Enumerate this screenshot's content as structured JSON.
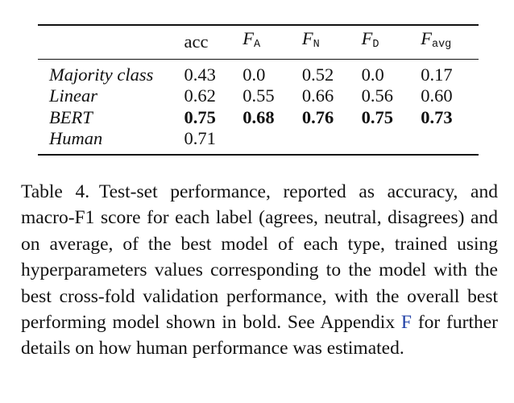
{
  "table": {
    "columns": [
      {
        "main": "acc",
        "sub": ""
      },
      {
        "main": "F",
        "sub": "A"
      },
      {
        "main": "F",
        "sub": "N"
      },
      {
        "main": "F",
        "sub": "D"
      },
      {
        "main": "F",
        "sub": "avg"
      }
    ],
    "rows": [
      {
        "label": "Majority class",
        "values": [
          "0.43",
          "0.0",
          "0.52",
          "0.0",
          "0.17"
        ]
      },
      {
        "label": "Linear",
        "values": [
          "0.62",
          "0.55",
          "0.66",
          "0.56",
          "0.60"
        ]
      },
      {
        "label": "BERT",
        "values": [
          "0.75",
          "0.68",
          "0.76",
          "0.75",
          "0.73"
        ]
      },
      {
        "label": "Human",
        "values": [
          "0.71",
          "",
          "",
          "",
          ""
        ]
      }
    ]
  },
  "caption": {
    "text_before": "Table 4. Test-set performance, reported as accuracy, and macro-F1 score for each label (agrees, neutral, dis­agrees) and on average, of the best model of each type, trained using hyperparameters values corresponding to the model with the best cross-fold validation perfor­mance, with the overall best performing model shown in bold. See Appendix ",
    "link_text": "F",
    "text_after": " for further details on how hu­man performance was estimated."
  }
}
